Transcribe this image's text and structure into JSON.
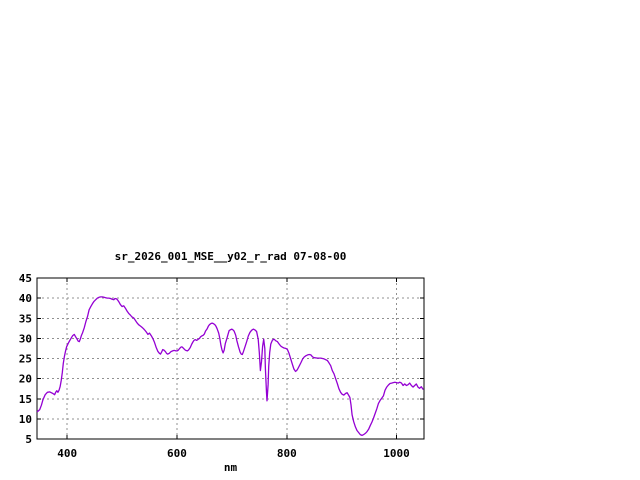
{
  "page": {
    "background": "#ffffff"
  },
  "chart_data": {
    "type": "line",
    "title": "sr_2026_001_MSE__y02_r_rad 07-08-00",
    "xlabel": "nm",
    "ylabel": "",
    "xlim": [
      345,
      1050
    ],
    "ylim": [
      5,
      45
    ],
    "x_ticks": [
      400,
      600,
      800,
      1000
    ],
    "x_tick_labels": [
      "400",
      "600",
      "800",
      "1000"
    ],
    "y_ticks": [
      5,
      10,
      15,
      20,
      25,
      30,
      35,
      40,
      45
    ],
    "y_tick_labels": [
      "5",
      "10",
      "15",
      "20",
      "25",
      "30",
      "35",
      "40",
      "45"
    ],
    "grid": true,
    "legend": "none",
    "line_color": "#9400D3",
    "grid_color": "#909090",
    "axis_color": "#000000",
    "series": [
      {
        "name": "sr_2026_001_MSE__y02_r_rad 07-08-00",
        "points": [
          [
            346,
            11.8
          ],
          [
            350,
            12.3
          ],
          [
            353,
            13.4
          ],
          [
            356,
            14.8
          ],
          [
            360,
            16.0
          ],
          [
            364,
            16.6
          ],
          [
            368,
            16.7
          ],
          [
            371,
            16.5
          ],
          [
            374,
            16.3
          ],
          [
            377,
            16.0
          ],
          [
            379,
            16.6
          ],
          [
            381,
            17.0
          ],
          [
            383,
            16.6
          ],
          [
            385,
            17.1
          ],
          [
            387,
            18.0
          ],
          [
            389,
            19.5
          ],
          [
            391,
            21.5
          ],
          [
            393,
            23.8
          ],
          [
            395,
            25.5
          ],
          [
            397,
            26.8
          ],
          [
            399,
            27.9
          ],
          [
            402,
            28.8
          ],
          [
            404,
            29.3
          ],
          [
            407,
            30.0
          ],
          [
            410,
            30.7
          ],
          [
            413,
            31.0
          ],
          [
            415,
            30.5
          ],
          [
            418,
            29.8
          ],
          [
            420,
            29.3
          ],
          [
            422,
            29.2
          ],
          [
            424,
            29.9
          ],
          [
            426,
            30.8
          ],
          [
            428,
            31.4
          ],
          [
            431,
            32.6
          ],
          [
            434,
            34.2
          ],
          [
            437,
            35.4
          ],
          [
            440,
            37.1
          ],
          [
            443,
            37.9
          ],
          [
            446,
            38.6
          ],
          [
            449,
            39.2
          ],
          [
            452,
            39.6
          ],
          [
            455,
            40.0
          ],
          [
            458,
            40.2
          ],
          [
            461,
            40.3
          ],
          [
            464,
            40.3
          ],
          [
            467,
            40.2
          ],
          [
            470,
            40.1
          ],
          [
            473,
            40.0
          ],
          [
            476,
            40.0
          ],
          [
            479,
            39.9
          ],
          [
            482,
            39.7
          ],
          [
            485,
            39.6
          ],
          [
            487,
            39.9
          ],
          [
            490,
            39.8
          ],
          [
            492,
            39.5
          ],
          [
            494,
            39.1
          ],
          [
            497,
            38.4
          ],
          [
            500,
            37.9
          ],
          [
            503,
            38.1
          ],
          [
            506,
            37.5
          ],
          [
            509,
            36.8
          ],
          [
            512,
            36.2
          ],
          [
            515,
            35.8
          ],
          [
            518,
            35.3
          ],
          [
            521,
            35.1
          ],
          [
            524,
            34.5
          ],
          [
            527,
            33.9
          ],
          [
            530,
            33.4
          ],
          [
            533,
            33.1
          ],
          [
            536,
            32.8
          ],
          [
            539,
            32.4
          ],
          [
            541,
            32.1
          ],
          [
            544,
            31.6
          ],
          [
            547,
            31.0
          ],
          [
            550,
            31.3
          ],
          [
            553,
            30.7
          ],
          [
            556,
            30.0
          ],
          [
            559,
            29.0
          ],
          [
            562,
            27.8
          ],
          [
            565,
            26.8
          ],
          [
            568,
            26.3
          ],
          [
            570,
            26.1
          ],
          [
            572,
            26.6
          ],
          [
            574,
            27.2
          ],
          [
            576,
            27.1
          ],
          [
            579,
            26.7
          ],
          [
            581,
            26.3
          ],
          [
            583,
            26.1
          ],
          [
            586,
            26.3
          ],
          [
            589,
            26.7
          ],
          [
            592,
            26.9
          ],
          [
            595,
            27.0
          ],
          [
            598,
            26.9
          ],
          [
            600,
            26.9
          ],
          [
            602,
            27.0
          ],
          [
            605,
            27.5
          ],
          [
            607,
            27.8
          ],
          [
            609,
            27.9
          ],
          [
            612,
            27.5
          ],
          [
            614,
            27.2
          ],
          [
            616,
            27.0
          ],
          [
            619,
            26.9
          ],
          [
            621,
            27.1
          ],
          [
            624,
            27.7
          ],
          [
            627,
            28.6
          ],
          [
            629,
            29.1
          ],
          [
            631,
            29.5
          ],
          [
            633,
            29.7
          ],
          [
            636,
            29.5
          ],
          [
            638,
            29.7
          ],
          [
            641,
            30.0
          ],
          [
            643,
            30.4
          ],
          [
            645,
            30.6
          ],
          [
            648,
            30.8
          ],
          [
            650,
            31.1
          ],
          [
            652,
            31.8
          ],
          [
            655,
            32.4
          ],
          [
            657,
            33.0
          ],
          [
            659,
            33.4
          ],
          [
            662,
            33.7
          ],
          [
            664,
            33.8
          ],
          [
            666,
            33.7
          ],
          [
            669,
            33.4
          ],
          [
            671,
            33.0
          ],
          [
            673,
            32.4
          ],
          [
            676,
            31.3
          ],
          [
            678,
            30.0
          ],
          [
            680,
            28.3
          ],
          [
            682,
            27.1
          ],
          [
            684,
            26.4
          ],
          [
            686,
            27.1
          ],
          [
            688,
            28.7
          ],
          [
            691,
            30.0
          ],
          [
            693,
            31.0
          ],
          [
            695,
            31.9
          ],
          [
            697,
            32.1
          ],
          [
            700,
            32.3
          ],
          [
            702,
            32.1
          ],
          [
            704,
            31.8
          ],
          [
            707,
            30.8
          ],
          [
            709,
            29.5
          ],
          [
            712,
            27.9
          ],
          [
            715,
            26.6
          ],
          [
            717,
            26.1
          ],
          [
            719,
            26.0
          ],
          [
            721,
            26.7
          ],
          [
            724,
            27.9
          ],
          [
            727,
            29.2
          ],
          [
            730,
            30.6
          ],
          [
            733,
            31.5
          ],
          [
            736,
            32.0
          ],
          [
            739,
            32.3
          ],
          [
            742,
            32.1
          ],
          [
            745,
            31.7
          ],
          [
            748,
            29.8
          ],
          [
            750,
            26.5
          ],
          [
            752,
            22.0
          ],
          [
            754,
            24.2
          ],
          [
            756,
            28.0
          ],
          [
            758,
            29.8
          ],
          [
            760,
            27.5
          ],
          [
            761,
            22.5
          ],
          [
            763,
            16.5
          ],
          [
            764,
            14.5
          ],
          [
            766,
            18.5
          ],
          [
            767,
            23.0
          ],
          [
            769,
            26.5
          ],
          [
            771,
            28.6
          ],
          [
            774,
            29.6
          ],
          [
            777,
            29.8
          ],
          [
            780,
            29.4
          ],
          [
            783,
            29.2
          ],
          [
            786,
            28.6
          ],
          [
            789,
            28.1
          ],
          [
            792,
            27.8
          ],
          [
            795,
            27.6
          ],
          [
            798,
            27.5
          ],
          [
            801,
            27.3
          ],
          [
            804,
            26.3
          ],
          [
            807,
            25.0
          ],
          [
            810,
            23.6
          ],
          [
            813,
            22.4
          ],
          [
            816,
            21.8
          ],
          [
            818,
            22.0
          ],
          [
            820,
            22.4
          ],
          [
            823,
            23.2
          ],
          [
            826,
            24.0
          ],
          [
            829,
            24.9
          ],
          [
            832,
            25.4
          ],
          [
            835,
            25.7
          ],
          [
            838,
            25.9
          ],
          [
            841,
            26.0
          ],
          [
            844,
            25.9
          ],
          [
            847,
            25.4
          ],
          [
            850,
            25.2
          ],
          [
            856,
            25.1
          ],
          [
            862,
            25.1
          ],
          [
            868,
            24.9
          ],
          [
            874,
            24.5
          ],
          [
            877,
            23.9
          ],
          [
            880,
            23.2
          ],
          [
            883,
            22.0
          ],
          [
            886,
            21.2
          ],
          [
            889,
            20.0
          ],
          [
            892,
            18.8
          ],
          [
            895,
            17.5
          ],
          [
            898,
            16.6
          ],
          [
            901,
            16.1
          ],
          [
            904,
            15.9
          ],
          [
            907,
            16.3
          ],
          [
            910,
            16.5
          ],
          [
            913,
            15.8
          ],
          [
            915,
            15.3
          ],
          [
            917,
            13.5
          ],
          [
            919,
            11.0
          ],
          [
            922,
            9.3
          ],
          [
            925,
            8.0
          ],
          [
            928,
            7.1
          ],
          [
            931,
            6.6
          ],
          [
            934,
            6.1
          ],
          [
            937,
            5.9
          ],
          [
            940,
            6.1
          ],
          [
            943,
            6.4
          ],
          [
            946,
            6.8
          ],
          [
            949,
            7.4
          ],
          [
            952,
            8.3
          ],
          [
            955,
            9.2
          ],
          [
            958,
            10.2
          ],
          [
            961,
            11.3
          ],
          [
            964,
            12.5
          ],
          [
            967,
            13.8
          ],
          [
            970,
            14.6
          ],
          [
            973,
            15.1
          ],
          [
            976,
            15.7
          ],
          [
            979,
            17.1
          ],
          [
            982,
            17.9
          ],
          [
            985,
            18.4
          ],
          [
            988,
            18.8
          ],
          [
            991,
            18.9
          ],
          [
            994,
            19.0
          ],
          [
            997,
            19.1
          ],
          [
            1000,
            19.0
          ],
          [
            1003,
            18.9
          ],
          [
            1006,
            19.1
          ],
          [
            1009,
            18.9
          ],
          [
            1012,
            18.3
          ],
          [
            1015,
            18.7
          ],
          [
            1018,
            18.3
          ],
          [
            1021,
            18.5
          ],
          [
            1024,
            18.9
          ],
          [
            1027,
            18.3
          ],
          [
            1030,
            17.9
          ],
          [
            1033,
            18.3
          ],
          [
            1036,
            18.7
          ],
          [
            1039,
            17.9
          ],
          [
            1042,
            17.6
          ],
          [
            1045,
            18.0
          ],
          [
            1048,
            17.4
          ]
        ]
      }
    ]
  }
}
